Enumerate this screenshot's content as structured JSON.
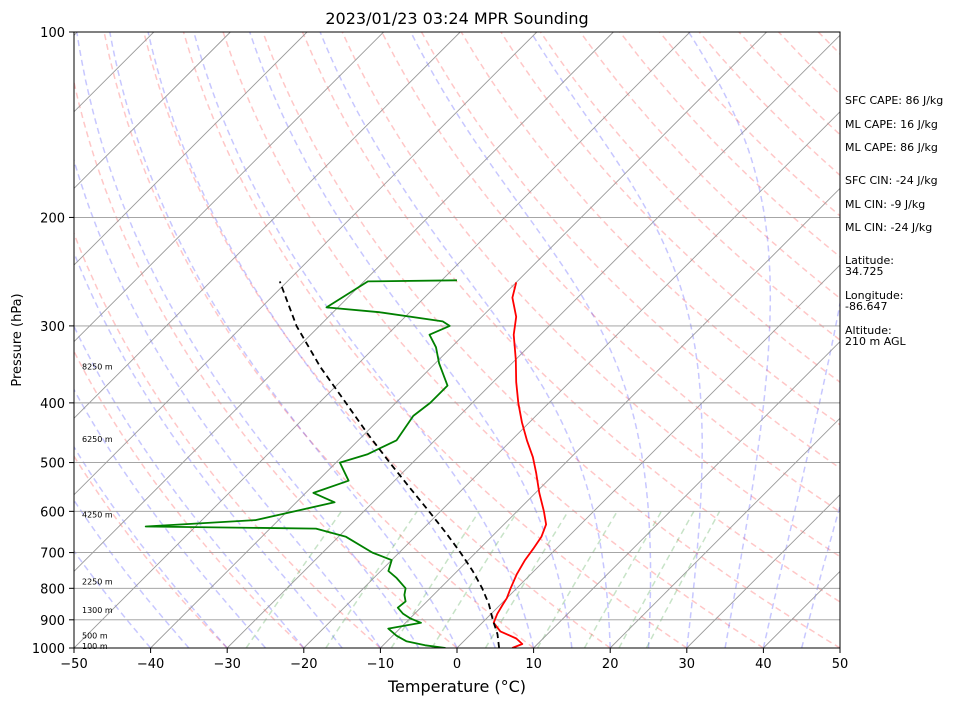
{
  "chart_data": {
    "type": "skew-t sounding",
    "title": "2023/01/23 03:24 MPR Sounding",
    "xlabel": "Temperature (°C)",
    "ylabel": "Pressure (hPa)",
    "xlim": [
      -50,
      50
    ],
    "ylim": [
      1000,
      100
    ],
    "y_scale": "log",
    "grid": true,
    "x_ticks": [
      -50,
      -40,
      -30,
      -20,
      -10,
      0,
      10,
      20,
      30,
      40,
      50
    ],
    "x_tick_labels": [
      "−50",
      "−40",
      "−30",
      "−20",
      "−10",
      "0",
      "10",
      "20",
      "30",
      "40",
      "50"
    ],
    "y_ticks": [
      1000,
      900,
      800,
      700,
      600,
      500,
      400,
      300,
      200,
      100
    ],
    "y_tick_labels": [
      "1000",
      "900",
      "800",
      "700",
      "600",
      "500",
      "400",
      "300",
      "200",
      "100"
    ],
    "height_labels": [
      {
        "pressure": 992,
        "label": "100 m"
      },
      {
        "pressure": 955,
        "label": "500 m"
      },
      {
        "pressure": 868,
        "label": "1300 m"
      },
      {
        "pressure": 780,
        "label": "2250 m"
      },
      {
        "pressure": 607,
        "label": "4250 m"
      },
      {
        "pressure": 458,
        "label": "6250 m"
      },
      {
        "pressure": 349,
        "label": "8250 m"
      }
    ],
    "series": [
      {
        "type": "temperature",
        "color": "#ff0000",
        "points": [
          [
            1000,
            7.2
          ],
          [
            985,
            8.0
          ],
          [
            965,
            6.5
          ],
          [
            940,
            3.5
          ],
          [
            910,
            1.5
          ],
          [
            880,
            0.8
          ],
          [
            850,
            0.3
          ],
          [
            830,
            0.0
          ],
          [
            800,
            -0.8
          ],
          [
            760,
            -1.8
          ],
          [
            720,
            -2.6
          ],
          [
            690,
            -3.0
          ],
          [
            660,
            -3.5
          ],
          [
            630,
            -4.5
          ],
          [
            600,
            -6.5
          ],
          [
            560,
            -9.5
          ],
          [
            520,
            -12.5
          ],
          [
            490,
            -15.0
          ],
          [
            460,
            -18.0
          ],
          [
            430,
            -21.0
          ],
          [
            400,
            -24.0
          ],
          [
            370,
            -27.0
          ],
          [
            340,
            -30.0
          ],
          [
            310,
            -33.5
          ],
          [
            290,
            -35.5
          ],
          [
            270,
            -38.5
          ],
          [
            255,
            -40.0
          ]
        ]
      },
      {
        "type": "dewpoint",
        "color": "#008000",
        "points": [
          [
            1000,
            -1.5
          ],
          [
            990,
            -4.5
          ],
          [
            975,
            -7.5
          ],
          [
            955,
            -9.5
          ],
          [
            930,
            -11.5
          ],
          [
            910,
            -8.0
          ],
          [
            895,
            -10.0
          ],
          [
            880,
            -11.5
          ],
          [
            860,
            -13.0
          ],
          [
            840,
            -12.8
          ],
          [
            820,
            -13.8
          ],
          [
            800,
            -14.5
          ],
          [
            770,
            -17.0
          ],
          [
            750,
            -19.0
          ],
          [
            720,
            -20.0
          ],
          [
            700,
            -23.5
          ],
          [
            660,
            -29.0
          ],
          [
            640,
            -34.0
          ],
          [
            635,
            -56.5
          ],
          [
            620,
            -43.0
          ],
          [
            580,
            -35.0
          ],
          [
            560,
            -39.0
          ],
          [
            535,
            -36.0
          ],
          [
            500,
            -39.5
          ],
          [
            485,
            -37.0
          ],
          [
            460,
            -35.0
          ],
          [
            420,
            -36.0
          ],
          [
            400,
            -35.5
          ],
          [
            375,
            -35.5
          ],
          [
            345,
            -39.5
          ],
          [
            325,
            -42.0
          ],
          [
            310,
            -44.5
          ],
          [
            300,
            -43.0
          ],
          [
            295,
            -44.5
          ],
          [
            285,
            -54.0
          ],
          [
            280,
            -61.5
          ],
          [
            254,
            -59.5
          ],
          [
            253,
            -48.0
          ]
        ]
      },
      {
        "type": "parcel",
        "color": "#000000",
        "points": [
          [
            1000,
            5.5
          ],
          [
            950,
            3.5
          ],
          [
            900,
            1.0
          ],
          [
            850,
            -1.5
          ],
          [
            800,
            -4.5
          ],
          [
            750,
            -8.0
          ],
          [
            700,
            -12.0
          ],
          [
            650,
            -16.5
          ],
          [
            600,
            -21.5
          ],
          [
            550,
            -27.0
          ],
          [
            500,
            -33.0
          ],
          [
            450,
            -39.5
          ],
          [
            400,
            -46.5
          ],
          [
            350,
            -54.5
          ],
          [
            300,
            -63.0
          ],
          [
            254,
            -71.0
          ]
        ]
      }
    ]
  },
  "sidebar": {
    "sfc_cape": "SFC CAPE: 86 J/kg",
    "ml_cape_1": "ML CAPE: 16 J/kg",
    "ml_cape_2": "ML CAPE: 86 J/kg",
    "sfc_cin": "SFC CIN: -24 J/kg",
    "ml_cin_1": "ML CIN: -9 J/kg",
    "ml_cin_2": "ML CIN: -24 J/kg",
    "latitude": "Latitude:\n34.725",
    "longitude": "Longitude:\n-86.647",
    "altitude": "Altitude:\n210 m AGL"
  }
}
